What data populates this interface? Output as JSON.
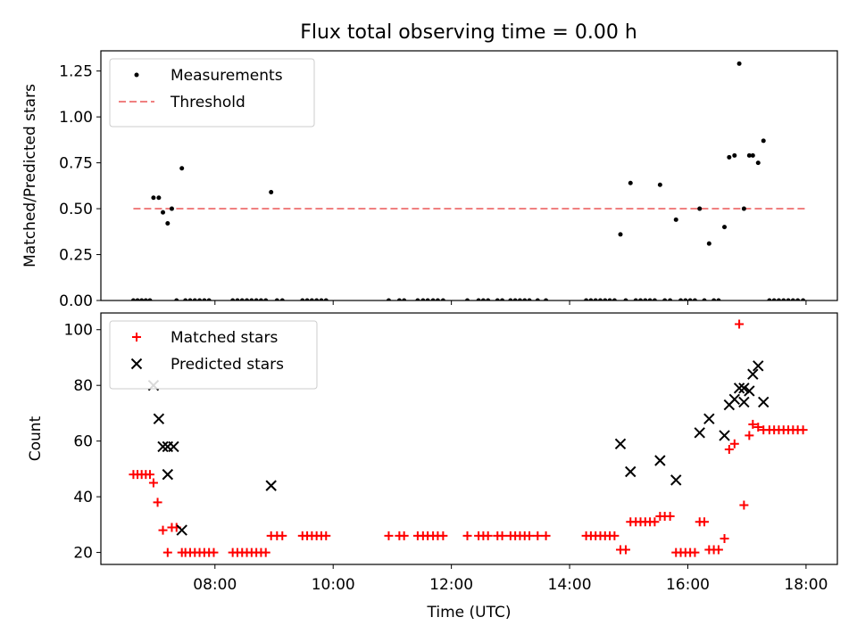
{
  "title": "Flux total observing time = 0.00 h",
  "chart_data": [
    {
      "type": "scatter",
      "ylabel": "Matched/Predicted stars",
      "xlim": [
        6.07,
        18.53
      ],
      "ylim": [
        0,
        1.36
      ],
      "yticks": [
        {
          "v": 0,
          "label": "0.00"
        },
        {
          "v": 0.25,
          "label": "0.25"
        },
        {
          "v": 0.5,
          "label": "0.50"
        },
        {
          "v": 0.75,
          "label": "0.75"
        },
        {
          "v": 1.0,
          "label": "1.00"
        },
        {
          "v": 1.25,
          "label": "1.25"
        }
      ],
      "legend_position": "top-left",
      "threshold": {
        "name": "Threshold",
        "value": 0.5,
        "x_start": 6.62,
        "x_end": 18.0,
        "color": "#f08080"
      },
      "series": [
        {
          "name": "Measurements",
          "marker": "dot",
          "color": "#000000",
          "points": [
            [
              6.62,
              0
            ],
            [
              6.69,
              0
            ],
            [
              6.76,
              0
            ],
            [
              6.83,
              0
            ],
            [
              6.9,
              0
            ],
            [
              6.96,
              0.56
            ],
            [
              7.05,
              0.56
            ],
            [
              7.12,
              0.48
            ],
            [
              7.2,
              0.42
            ],
            [
              7.27,
              0.5
            ],
            [
              7.35,
              0
            ],
            [
              7.44,
              0.72
            ],
            [
              7.5,
              0
            ],
            [
              7.58,
              0
            ],
            [
              7.66,
              0
            ],
            [
              7.74,
              0
            ],
            [
              7.82,
              0
            ],
            [
              7.9,
              0
            ],
            [
              8.3,
              0
            ],
            [
              8.38,
              0
            ],
            [
              8.46,
              0
            ],
            [
              8.54,
              0
            ],
            [
              8.62,
              0
            ],
            [
              8.7,
              0
            ],
            [
              8.78,
              0
            ],
            [
              8.86,
              0
            ],
            [
              8.95,
              0.59
            ],
            [
              9.05,
              0
            ],
            [
              9.14,
              0
            ],
            [
              9.48,
              0
            ],
            [
              9.56,
              0
            ],
            [
              9.64,
              0
            ],
            [
              9.72,
              0
            ],
            [
              9.8,
              0
            ],
            [
              9.88,
              0
            ],
            [
              10.94,
              0
            ],
            [
              11.12,
              0
            ],
            [
              11.2,
              0
            ],
            [
              11.43,
              0
            ],
            [
              11.52,
              0
            ],
            [
              11.6,
              0
            ],
            [
              11.69,
              0
            ],
            [
              11.77,
              0
            ],
            [
              11.86,
              0
            ],
            [
              12.27,
              0
            ],
            [
              12.46,
              0
            ],
            [
              12.54,
              0
            ],
            [
              12.62,
              0
            ],
            [
              12.78,
              0
            ],
            [
              12.86,
              0
            ],
            [
              13.0,
              0
            ],
            [
              13.08,
              0
            ],
            [
              13.16,
              0
            ],
            [
              13.24,
              0
            ],
            [
              13.32,
              0
            ],
            [
              13.46,
              0
            ],
            [
              13.6,
              0
            ],
            [
              14.28,
              0
            ],
            [
              14.36,
              0
            ],
            [
              14.44,
              0
            ],
            [
              14.52,
              0
            ],
            [
              14.6,
              0
            ],
            [
              14.68,
              0
            ],
            [
              14.76,
              0
            ],
            [
              14.86,
              0.36
            ],
            [
              14.95,
              0
            ],
            [
              15.03,
              0.64
            ],
            [
              15.12,
              0
            ],
            [
              15.2,
              0
            ],
            [
              15.28,
              0
            ],
            [
              15.36,
              0
            ],
            [
              15.44,
              0
            ],
            [
              15.53,
              0.63
            ],
            [
              15.61,
              0
            ],
            [
              15.7,
              0
            ],
            [
              15.8,
              0.44
            ],
            [
              15.88,
              0
            ],
            [
              15.96,
              0
            ],
            [
              16.04,
              0
            ],
            [
              16.12,
              0
            ],
            [
              16.2,
              0.5
            ],
            [
              16.28,
              0
            ],
            [
              16.36,
              0.31
            ],
            [
              16.44,
              0
            ],
            [
              16.52,
              0
            ],
            [
              16.62,
              0.4
            ],
            [
              16.7,
              0.78
            ],
            [
              16.79,
              0.79
            ],
            [
              16.87,
              1.29
            ],
            [
              16.95,
              0.5
            ],
            [
              17.04,
              0.79
            ],
            [
              17.1,
              0.79
            ],
            [
              17.19,
              0.75
            ],
            [
              17.28,
              0.87
            ],
            [
              17.38,
              0
            ],
            [
              17.46,
              0
            ],
            [
              17.54,
              0
            ],
            [
              17.62,
              0
            ],
            [
              17.7,
              0
            ],
            [
              17.78,
              0
            ],
            [
              17.86,
              0
            ],
            [
              17.95,
              0
            ]
          ]
        }
      ]
    },
    {
      "type": "scatter",
      "xlabel": "Time (UTC)",
      "ylabel": "Count",
      "xlim": [
        6.07,
        18.53
      ],
      "ylim": [
        15.7,
        106
      ],
      "yticks": [
        {
          "v": 20,
          "label": "20"
        },
        {
          "v": 40,
          "label": "40"
        },
        {
          "v": 60,
          "label": "60"
        },
        {
          "v": 80,
          "label": "80"
        },
        {
          "v": 100,
          "label": "100"
        }
      ],
      "xticks": [
        {
          "v": 8,
          "label": "08:00"
        },
        {
          "v": 10,
          "label": "10:00"
        },
        {
          "v": 12,
          "label": "12:00"
        },
        {
          "v": 14,
          "label": "14:00"
        },
        {
          "v": 16,
          "label": "16:00"
        },
        {
          "v": 18,
          "label": "18:00"
        }
      ],
      "legend_position": "top-left",
      "series": [
        {
          "name": "Matched stars",
          "marker": "plus",
          "color": "#ff0000",
          "points": [
            [
              6.62,
              48
            ],
            [
              6.69,
              48
            ],
            [
              6.76,
              48
            ],
            [
              6.83,
              48
            ],
            [
              6.9,
              48
            ],
            [
              6.96,
              45
            ],
            [
              7.03,
              38
            ],
            [
              7.12,
              28
            ],
            [
              7.2,
              20
            ],
            [
              7.27,
              29
            ],
            [
              7.35,
              29
            ],
            [
              7.44,
              20
            ],
            [
              7.5,
              20
            ],
            [
              7.58,
              20
            ],
            [
              7.66,
              20
            ],
            [
              7.74,
              20
            ],
            [
              7.82,
              20
            ],
            [
              7.9,
              20
            ],
            [
              7.98,
              20
            ],
            [
              8.3,
              20
            ],
            [
              8.38,
              20
            ],
            [
              8.46,
              20
            ],
            [
              8.54,
              20
            ],
            [
              8.62,
              20
            ],
            [
              8.7,
              20
            ],
            [
              8.78,
              20
            ],
            [
              8.86,
              20
            ],
            [
              8.95,
              26
            ],
            [
              9.05,
              26
            ],
            [
              9.14,
              26
            ],
            [
              9.48,
              26
            ],
            [
              9.56,
              26
            ],
            [
              9.64,
              26
            ],
            [
              9.72,
              26
            ],
            [
              9.8,
              26
            ],
            [
              9.88,
              26
            ],
            [
              10.94,
              26
            ],
            [
              11.12,
              26
            ],
            [
              11.2,
              26
            ],
            [
              11.43,
              26
            ],
            [
              11.52,
              26
            ],
            [
              11.6,
              26
            ],
            [
              11.69,
              26
            ],
            [
              11.77,
              26
            ],
            [
              11.86,
              26
            ],
            [
              12.27,
              26
            ],
            [
              12.46,
              26
            ],
            [
              12.54,
              26
            ],
            [
              12.62,
              26
            ],
            [
              12.78,
              26
            ],
            [
              12.86,
              26
            ],
            [
              13.0,
              26
            ],
            [
              13.08,
              26
            ],
            [
              13.16,
              26
            ],
            [
              13.24,
              26
            ],
            [
              13.32,
              26
            ],
            [
              13.46,
              26
            ],
            [
              13.6,
              26
            ],
            [
              14.28,
              26
            ],
            [
              14.36,
              26
            ],
            [
              14.44,
              26
            ],
            [
              14.52,
              26
            ],
            [
              14.6,
              26
            ],
            [
              14.68,
              26
            ],
            [
              14.76,
              26
            ],
            [
              14.86,
              21
            ],
            [
              14.95,
              21
            ],
            [
              15.03,
              31
            ],
            [
              15.12,
              31
            ],
            [
              15.2,
              31
            ],
            [
              15.28,
              31
            ],
            [
              15.36,
              31
            ],
            [
              15.44,
              31
            ],
            [
              15.53,
              33
            ],
            [
              15.61,
              33
            ],
            [
              15.7,
              33
            ],
            [
              15.8,
              20
            ],
            [
              15.88,
              20
            ],
            [
              15.96,
              20
            ],
            [
              16.04,
              20
            ],
            [
              16.12,
              20
            ],
            [
              16.2,
              31
            ],
            [
              16.28,
              31
            ],
            [
              16.36,
              21
            ],
            [
              16.44,
              21
            ],
            [
              16.52,
              21
            ],
            [
              16.62,
              25
            ],
            [
              16.7,
              57
            ],
            [
              16.79,
              59
            ],
            [
              16.87,
              102
            ],
            [
              16.95,
              37
            ],
            [
              17.04,
              62
            ],
            [
              17.1,
              66
            ],
            [
              17.19,
              65
            ],
            [
              17.28,
              64
            ],
            [
              17.38,
              64
            ],
            [
              17.46,
              64
            ],
            [
              17.54,
              64
            ],
            [
              17.62,
              64
            ],
            [
              17.7,
              64
            ],
            [
              17.78,
              64
            ],
            [
              17.86,
              64
            ],
            [
              17.95,
              64
            ]
          ]
        },
        {
          "name": "Predicted stars",
          "marker": "x",
          "color": "#000000",
          "points": [
            [
              6.96,
              80
            ],
            [
              7.05,
              68
            ],
            [
              7.12,
              58
            ],
            [
              7.2,
              48
            ],
            [
              7.2,
              58
            ],
            [
              7.3,
              58
            ],
            [
              7.44,
              28
            ],
            [
              8.95,
              44
            ],
            [
              14.86,
              59
            ],
            [
              15.03,
              49
            ],
            [
              15.53,
              53
            ],
            [
              15.8,
              46
            ],
            [
              16.2,
              63
            ],
            [
              16.36,
              68
            ],
            [
              16.62,
              62
            ],
            [
              16.7,
              73
            ],
            [
              16.79,
              75
            ],
            [
              16.87,
              79
            ],
            [
              16.95,
              74
            ],
            [
              16.95,
              79
            ],
            [
              17.04,
              78
            ],
            [
              17.1,
              84
            ],
            [
              17.19,
              87
            ],
            [
              17.28,
              74
            ]
          ]
        }
      ]
    }
  ]
}
